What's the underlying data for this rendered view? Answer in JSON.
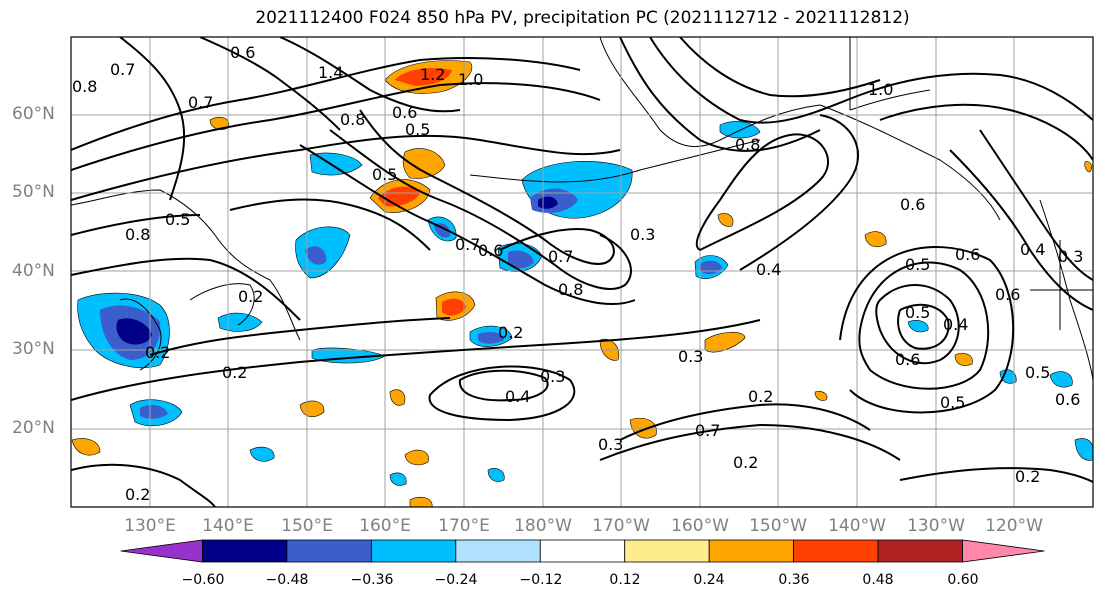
{
  "title": "2021112400 F024 850 hPa PV, precipitation PC (2021112712 - 2021112812)",
  "lat_labels": [
    "60°N",
    "50°N",
    "40°N",
    "30°N",
    "20°N"
  ],
  "lon_labels": [
    "130°E",
    "140°E",
    "150°E",
    "160°E",
    "170°E",
    "180°W",
    "170°W",
    "160°W",
    "150°W",
    "140°W",
    "130°W",
    "120°W"
  ],
  "colorbar": {
    "ticks": [
      "−0.60",
      "−0.48",
      "−0.36",
      "−0.24",
      "−0.12",
      "0.12",
      "0.24",
      "0.36",
      "0.48",
      "0.60"
    ],
    "colors": [
      "#9932CC",
      "#00008B",
      "#3A5FCD",
      "#00BFFF",
      "#B0E2FF",
      "#FFFFFF",
      "#FFEC8B",
      "#FFA500",
      "#FF4000",
      "#B22222",
      "#FF88AA"
    ]
  },
  "contour_labels": [
    "0.8",
    "0.7",
    "0.6",
    "1.4",
    "1.2",
    "1.0",
    "0.7",
    "0.8",
    "0.6",
    "0.5",
    "0.8",
    "0.5",
    "0.2",
    "0.2",
    "0.5",
    "0.7",
    "0.6",
    "0.7",
    "0.8",
    "0.3",
    "0.4",
    "1.0",
    "0.8",
    "0.6",
    "0.6",
    "0.5",
    "0.4",
    "0.3",
    "0.4",
    "0.5",
    "0.6",
    "0.5",
    "0.6",
    "0.2",
    "0.3",
    "0.4",
    "0.3",
    "0.2",
    "0.3",
    "0.2",
    "0.2",
    "0.2",
    "0.5",
    "0.6",
    "0.7",
    "0.2"
  ]
}
